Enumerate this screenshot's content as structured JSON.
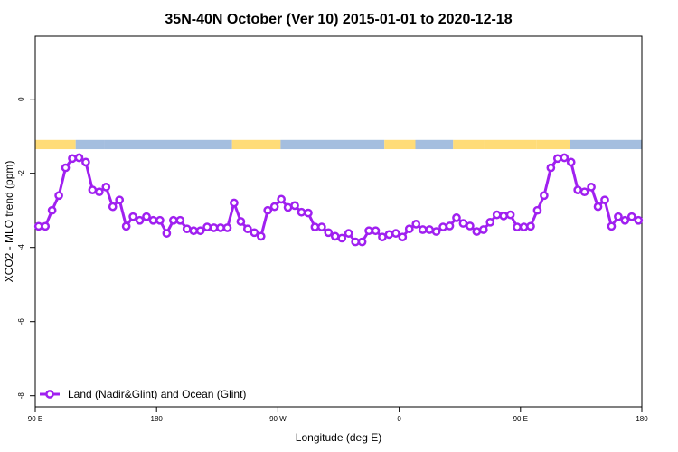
{
  "chart_data": {
    "type": "line",
    "title": "35N-40N October (Ver 10)   2015-01-01 to 2020-12-18",
    "xlabel": "Longitude (deg E)",
    "ylabel": "XCO2 - MLO trend (ppm)",
    "xlim": [
      90,
      540
    ],
    "ylim": [
      -8.3,
      1.7
    ],
    "x_ticks": [
      {
        "value": 90,
        "label": "90 E"
      },
      {
        "value": 180,
        "label": "180"
      },
      {
        "value": 270,
        "label": "90 W"
      },
      {
        "value": 360,
        "label": "0"
      },
      {
        "value": 450,
        "label": "90 E"
      },
      {
        "value": 540,
        "label": "180"
      }
    ],
    "y_ticks": [
      {
        "value": 0,
        "label": "0"
      },
      {
        "value": -2,
        "label": "-2"
      },
      {
        "value": -4,
        "label": "-4"
      },
      {
        "value": -6,
        "label": "-6"
      },
      {
        "value": -8,
        "label": "-8"
      }
    ],
    "grid": false,
    "legend_position": "bottom-left",
    "series": [
      {
        "name": "Land (Nadir&Glint) and Ocean (Glint)",
        "color": "#a020f0",
        "x": [
          92.5,
          97.5,
          102.5,
          107.5,
          112.5,
          117.5,
          122.5,
          127.5,
          132.5,
          137.5,
          142.5,
          147.5,
          152.5,
          157.5,
          162.5,
          167.5,
          172.5,
          177.5,
          182.5,
          187.5,
          192.5,
          197.5,
          202.5,
          207.5,
          212.5,
          217.5,
          222.5,
          227.5,
          232.5,
          237.5,
          242.5,
          247.5,
          252.5,
          257.5,
          262.5,
          267.5,
          272.5,
          277.5,
          282.5,
          287.5,
          292.5,
          297.5,
          302.5,
          307.5,
          312.5,
          317.5,
          322.5,
          327.5,
          332.5,
          337.5,
          342.5,
          347.5,
          352.5,
          357.5,
          362.5,
          367.5,
          372.5,
          377.5,
          382.5,
          387.5,
          392.5,
          397.5,
          402.5,
          407.5,
          412.5,
          417.5,
          422.5,
          427.5,
          432.5,
          437.5,
          442.5,
          447.5,
          452.5,
          457.5,
          462.5,
          467.5,
          472.5,
          477.5,
          482.5,
          487.5,
          492.5,
          497.5,
          502.5,
          507.5,
          512.5,
          517.5,
          522.5,
          527.5,
          532.5,
          537.5
        ],
        "values": [
          -3.43,
          -3.43,
          -3.0,
          -2.6,
          -1.85,
          -1.6,
          -1.58,
          -1.7,
          -2.45,
          -2.5,
          -2.37,
          -2.9,
          -2.72,
          -3.43,
          -3.17,
          -3.27,
          -3.17,
          -3.27,
          -3.27,
          -3.62,
          -3.27,
          -3.27,
          -3.5,
          -3.55,
          -3.55,
          -3.45,
          -3.47,
          -3.47,
          -3.47,
          -2.8,
          -3.3,
          -3.5,
          -3.6,
          -3.7,
          -3.0,
          -2.9,
          -2.7,
          -2.92,
          -2.87,
          -3.05,
          -3.07,
          -3.45,
          -3.45,
          -3.6,
          -3.7,
          -3.75,
          -3.62,
          -3.85,
          -3.85,
          -3.55,
          -3.55,
          -3.72,
          -3.65,
          -3.62,
          -3.72,
          -3.5,
          -3.37,
          -3.52,
          -3.52,
          -3.57,
          -3.45,
          -3.42,
          -3.2,
          -3.35,
          -3.42,
          -3.57,
          -3.52,
          -3.32,
          -3.12,
          -3.15,
          -3.12,
          -3.45,
          -3.45,
          -3.43,
          -3.0,
          -2.6,
          -1.85,
          -1.6,
          -1.58,
          -1.7,
          -2.45,
          -2.5,
          -2.37,
          -2.9,
          -2.72,
          -3.43,
          -3.17,
          -3.27,
          -3.17,
          -3.27
        ]
      }
    ],
    "surface_band": {
      "y_range": [
        -1.35,
        -1.1
      ],
      "segments": [
        {
          "x0": 90,
          "x1": 120,
          "type": "land"
        },
        {
          "x0": 120,
          "x1": 141,
          "type": "ocean"
        },
        {
          "x0": 141,
          "x1": 236,
          "type": "ocean"
        },
        {
          "x0": 236,
          "x1": 272,
          "type": "land"
        },
        {
          "x0": 272,
          "x1": 349,
          "type": "ocean"
        },
        {
          "x0": 349,
          "x1": 372,
          "type": "land"
        },
        {
          "x0": 372,
          "x1": 400,
          "type": "ocean"
        },
        {
          "x0": 400,
          "x1": 423,
          "type": "land"
        },
        {
          "x0": 423,
          "x1": 462,
          "type": "land"
        },
        {
          "x0": 462,
          "x1": 487,
          "type": "land"
        },
        {
          "x0": 487,
          "x1": 540,
          "type": "ocean"
        }
      ],
      "land_color": "#ffdc78",
      "ocean_color": "#a4bedf"
    }
  }
}
